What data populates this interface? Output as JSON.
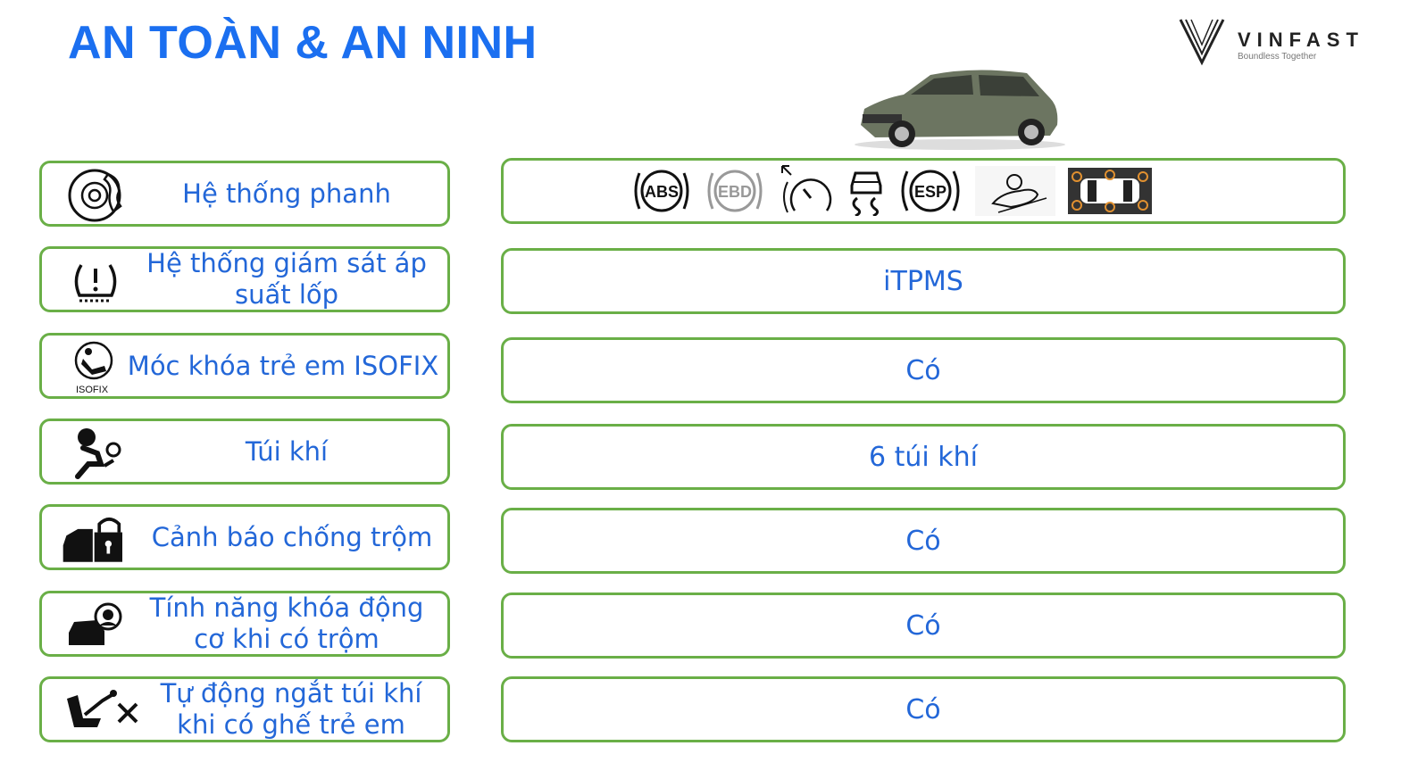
{
  "title": "AN TOÀN & AN NINH",
  "logo": {
    "brand": "VINFAST",
    "tagline": "Boundless Together"
  },
  "features": [
    {
      "label": "Hệ thống phanh",
      "icon": "brake-disc-icon",
      "value_icons": [
        "ABS",
        "EBD",
        "cruise-control",
        "traction-control",
        "ESP",
        "hill-assist",
        "parking-sensors"
      ]
    },
    {
      "label": "Hệ thống giám sát áp suất lốp",
      "icon": "tire-pressure-icon",
      "value": "iTPMS"
    },
    {
      "label": "Móc khóa trẻ em ISOFIX",
      "icon": "isofix-icon",
      "icon_text": "ISOFIX",
      "value": "Có"
    },
    {
      "label": "Túi khí",
      "icon": "airbag-icon",
      "value": "6 túi khí"
    },
    {
      "label": "Cảnh báo chống trộm",
      "icon": "anti-theft-icon",
      "value": "Có"
    },
    {
      "label": "Tính năng khóa động cơ khi có trộm",
      "icon": "immobilizer-icon",
      "value": "Có"
    },
    {
      "label": "Tự động ngắt túi khí khi có ghế trẻ em",
      "icon": "airbag-off-icon",
      "value": "Có"
    }
  ],
  "colors": {
    "title": "#1b6ff0",
    "text": "#2367d8",
    "border": "#6aaf47"
  }
}
